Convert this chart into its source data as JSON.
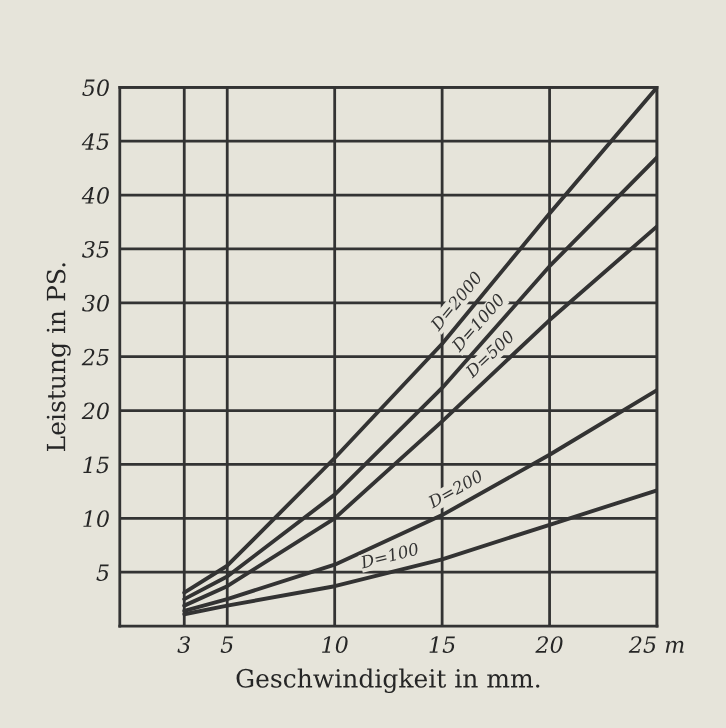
{
  "chart_data": {
    "type": "line",
    "xlabel": "Geschwindigkeit in mm.",
    "ylabel": "Leistung in PS.",
    "x": [
      3,
      5,
      10,
      15,
      20,
      25
    ],
    "series": [
      {
        "name": "D=2000",
        "color": "#333333",
        "values": [
          3.1,
          5.6,
          15.6,
          26.2,
          38.3,
          50
        ]
      },
      {
        "name": "D=1000",
        "color": "#333333",
        "values": [
          2.5,
          4.6,
          12.2,
          22.1,
          33.4,
          43.5
        ]
      },
      {
        "name": "D=500",
        "color": "#333333",
        "values": [
          1.9,
          3.7,
          10.0,
          19.0,
          28.4,
          37.1
        ]
      },
      {
        "name": "D=200",
        "color": "#333333",
        "values": [
          1.4,
          2.5,
          5.7,
          10.3,
          15.9,
          21.9
        ]
      },
      {
        "name": "D=100",
        "color": "#333333",
        "values": [
          1.1,
          1.9,
          3.7,
          6.2,
          9.4,
          12.6
        ]
      }
    ],
    "xlim": [
      0,
      25
    ],
    "ylim": [
      0,
      50
    ],
    "xticks": [
      3,
      5,
      10,
      15,
      20,
      {
        "value": 25,
        "label": "25 m"
      }
    ],
    "yticks": [
      5,
      10,
      15,
      20,
      25,
      30,
      35,
      40,
      45,
      50
    ],
    "grid": true,
    "legend": false,
    "marker": "none",
    "line_style": "solid"
  }
}
